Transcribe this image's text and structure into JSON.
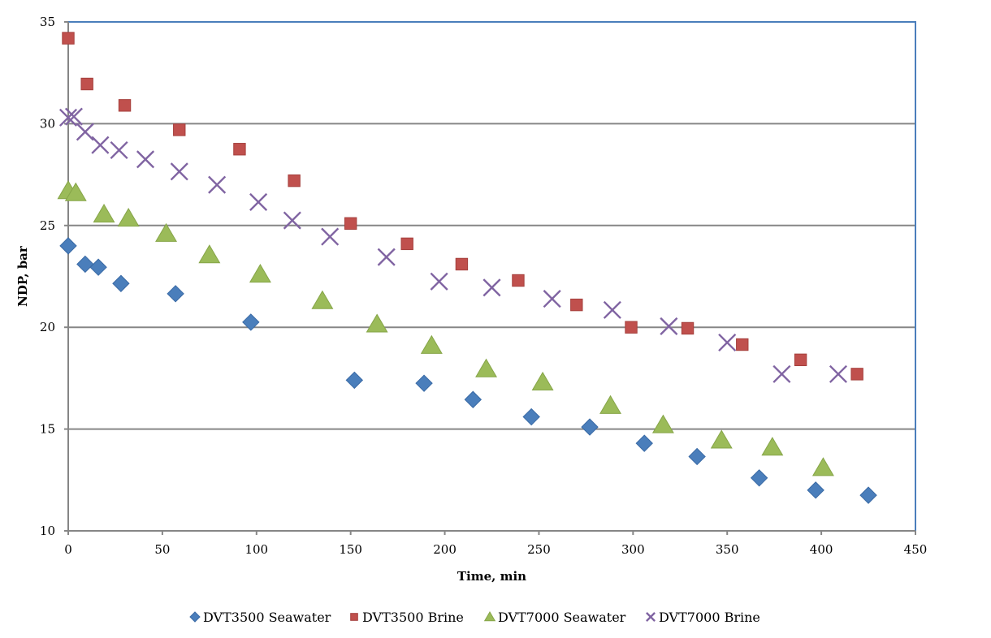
{
  "chart_data": {
    "type": "scatter",
    "title": "",
    "xlabel": "Time, min",
    "ylabel": "NDP, bar",
    "xlim": [
      0,
      450
    ],
    "ylim": [
      10,
      35
    ],
    "xticks": [
      0,
      50,
      100,
      150,
      200,
      250,
      300,
      350,
      400,
      450
    ],
    "yticks": [
      10,
      15,
      20,
      25,
      30,
      35
    ],
    "grid": "horizontal",
    "legend_position": "bottom",
    "series": [
      {
        "name": "DVT3500 Seawater",
        "marker": "diamond",
        "color": "#4a7ebb",
        "x": [
          0,
          9,
          16,
          28,
          57,
          97,
          152,
          189,
          215,
          246,
          277,
          306,
          334,
          367,
          397,
          425
        ],
        "y": [
          24.0,
          23.1,
          22.95,
          22.15,
          21.65,
          20.25,
          17.4,
          17.25,
          16.45,
          15.6,
          15.1,
          14.3,
          13.65,
          12.6,
          12.0,
          11.75
        ]
      },
      {
        "name": "DVT3500 Brine",
        "marker": "square",
        "color": "#c0504d",
        "x": [
          0,
          10,
          30,
          59,
          91,
          120,
          150,
          180,
          209,
          239,
          270,
          299,
          329,
          358,
          389,
          419
        ],
        "y": [
          34.2,
          31.95,
          30.9,
          29.7,
          28.75,
          27.2,
          25.1,
          24.1,
          23.1,
          22.3,
          21.1,
          20.0,
          19.95,
          19.15,
          18.4,
          17.7
        ]
      },
      {
        "name": "DVT7000 Seawater",
        "marker": "triangle",
        "color": "#9bbb59",
        "x": [
          0,
          4,
          19,
          32,
          52,
          75,
          102,
          135,
          164,
          193,
          222,
          252,
          288,
          316,
          347,
          374,
          401
        ],
        "y": [
          26.7,
          26.6,
          25.55,
          25.35,
          24.6,
          23.55,
          22.6,
          21.3,
          20.15,
          19.1,
          17.95,
          17.3,
          16.15,
          15.2,
          14.45,
          14.1,
          13.1
        ]
      },
      {
        "name": "DVT7000 Brine",
        "marker": "x",
        "color": "#8064a2",
        "x": [
          0,
          3,
          9,
          17,
          27,
          41,
          59,
          79,
          101,
          119,
          139,
          169,
          197,
          225,
          257,
          289,
          319,
          350,
          379,
          409
        ],
        "y": [
          30.3,
          30.35,
          29.6,
          28.95,
          28.7,
          28.25,
          27.65,
          27.0,
          26.15,
          25.25,
          24.45,
          23.45,
          22.25,
          21.95,
          21.4,
          20.85,
          20.05,
          19.25,
          17.7,
          17.7
        ]
      }
    ]
  }
}
